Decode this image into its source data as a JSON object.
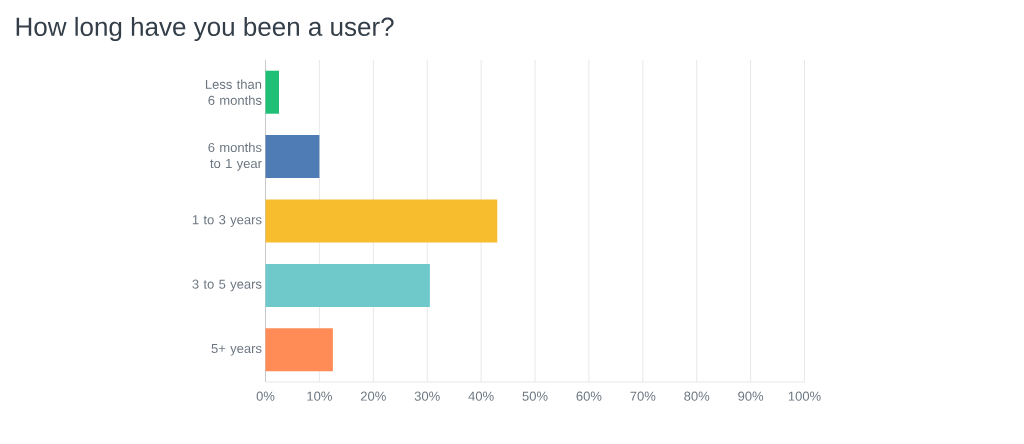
{
  "chart_data": {
    "type": "bar",
    "orientation": "horizontal",
    "title": "How long have you been a user?",
    "categories": [
      "Less than 6 months",
      "6 months to 1 year",
      "1 to 3 years",
      "3 to 5 years",
      "5+ years"
    ],
    "values": [
      2.5,
      10,
      43,
      30.5,
      12.5
    ],
    "colors": [
      "#1fbf75",
      "#507cb6",
      "#f7bd2e",
      "#6fc9cb",
      "#ff8b56"
    ],
    "xlim": [
      0,
      100
    ],
    "xticks": [
      {
        "value": 0,
        "label": "0%"
      },
      {
        "value": 10,
        "label": "10%"
      },
      {
        "value": 20,
        "label": "20%"
      },
      {
        "value": 30,
        "label": "30%"
      },
      {
        "value": 40,
        "label": "40%"
      },
      {
        "value": 50,
        "label": "50%"
      },
      {
        "value": 60,
        "label": "60%"
      },
      {
        "value": 70,
        "label": "70%"
      },
      {
        "value": 80,
        "label": "80%"
      },
      {
        "value": 90,
        "label": "90%"
      },
      {
        "value": 100,
        "label": "100%"
      }
    ],
    "grid": "x"
  }
}
